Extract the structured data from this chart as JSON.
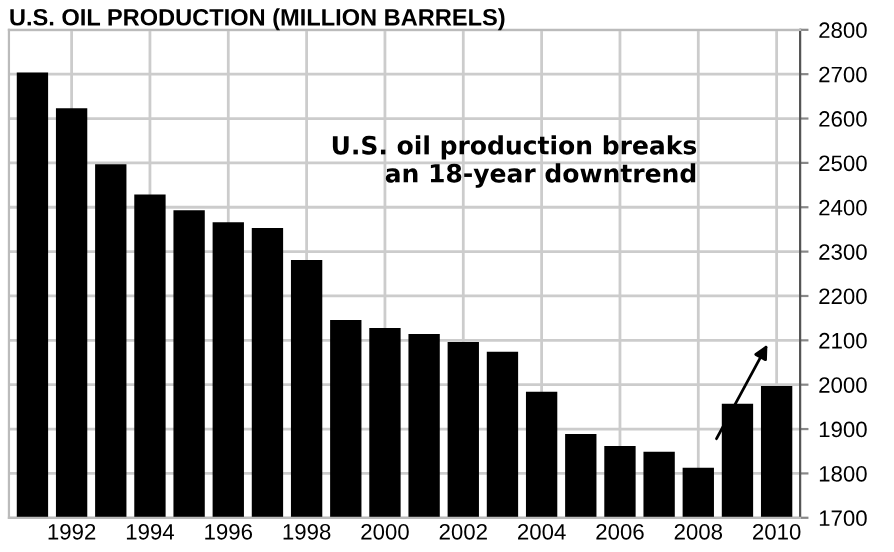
{
  "chart_data": {
    "type": "bar",
    "title": "U.S. OIL PRODUCTION (MILLION BARRELS)",
    "categories": [
      null,
      "1992",
      null,
      "1994",
      null,
      "1996",
      null,
      "1998",
      null,
      "2000",
      null,
      "2002",
      null,
      "2004",
      null,
      "2006",
      null,
      "2008",
      null,
      "2010"
    ],
    "values": [
      2704,
      2623,
      2497,
      2429,
      2393,
      2366,
      2353,
      2281,
      2146,
      2128,
      2114,
      2096,
      2074,
      1984,
      1889,
      1862,
      1849,
      1813,
      1957,
      1997
    ],
    "color": "#000000",
    "ylim": [
      1700,
      2800
    ],
    "yticks": [
      1700,
      1800,
      1900,
      2000,
      2100,
      2200,
      2300,
      2400,
      2500,
      2600,
      2700,
      2800
    ],
    "grid": true,
    "annotations": [
      "U.S. oil production breaks\nan 18-year downtrend"
    ]
  }
}
